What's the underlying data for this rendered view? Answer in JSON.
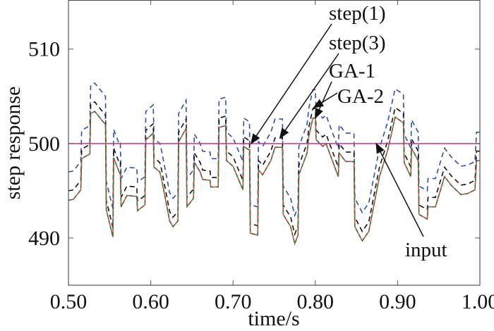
{
  "chart_data": {
    "type": "line",
    "title": "",
    "xlabel": "time/s",
    "ylabel": "step response",
    "xlim": [
      0.5,
      1.0
    ],
    "ylim": [
      485,
      515.2
    ],
    "xticks": [
      "0.50",
      "0.60",
      "0.70",
      "0.80",
      "0.90",
      "1.00"
    ],
    "xtick_values": [
      0.5,
      0.6,
      0.7,
      0.8,
      0.9,
      1.0
    ],
    "yticks": [
      "490",
      "500",
      "510"
    ],
    "ytick_values": [
      490,
      500,
      510
    ],
    "grid": false,
    "x": [
      0.5,
      0.506,
      0.515,
      0.516,
      0.526,
      0.527,
      0.532,
      0.545,
      0.546,
      0.554,
      0.555,
      0.562,
      0.563,
      0.564,
      0.571,
      0.583,
      0.584,
      0.593,
      0.594,
      0.603,
      0.604,
      0.611,
      0.613,
      0.623,
      0.627,
      0.633,
      0.634,
      0.643,
      0.644,
      0.652,
      0.653,
      0.66,
      0.663,
      0.672,
      0.673,
      0.682,
      0.683,
      0.691,
      0.692,
      0.7,
      0.712,
      0.713,
      0.72,
      0.721,
      0.73,
      0.731,
      0.736,
      0.746,
      0.751,
      0.76,
      0.761,
      0.77,
      0.775,
      0.779,
      0.78,
      0.79,
      0.792,
      0.797,
      0.8,
      0.801,
      0.809,
      0.813,
      0.828,
      0.829,
      0.837,
      0.847,
      0.848,
      0.857,
      0.865,
      0.878,
      0.888,
      0.897,
      0.907,
      0.908,
      0.916,
      0.917,
      0.925,
      0.926,
      0.936,
      0.937,
      0.946,
      0.957,
      0.966,
      0.977,
      0.985,
      0.994,
      0.996,
      1.0
    ],
    "series": [
      {
        "name": "step(1)",
        "color": "#2a4fb0",
        "style": "dashed",
        "values": [
          497.0,
          497.1,
          498.1,
          501.4,
          501.9,
          506.2,
          506.4,
          505.0,
          496.0,
          493.1,
          501.5,
          499.9,
          500.0,
          496.3,
          497.5,
          497.4,
          495.9,
          496.5,
          503.4,
          504.1,
          500.5,
          500.0,
          499.3,
          494.8,
          494.2,
          494.8,
          503.2,
          504.6,
          496.3,
          497.2,
          501.0,
          500.0,
          499.2,
          499.1,
          498.4,
          498.4,
          504.7,
          504.9,
          501.2,
          500.6,
          498.1,
          502.7,
          502.3,
          493.5,
          493.3,
          500.2,
          499.7,
          501.2,
          502.6,
          502.6,
          495.5,
          494.2,
          492.4,
          493.3,
          499.7,
          502.0,
          503.7,
          505.7,
          505.7,
          503.4,
          502.7,
          503.0,
          499.5,
          502.0,
          501.1,
          501.1,
          494.2,
          492.7,
          493.7,
          499.5,
          502.3,
          505.8,
          505.2,
          501.0,
          499.5,
          502.5,
          501.2,
          495.5,
          495.0,
          496.3,
          496.3,
          499.5,
          498.5,
          497.6,
          497.7,
          498.1,
          501.2,
          501.2
        ]
      },
      {
        "name": "step(3)",
        "color": "#111111",
        "style": "dashed",
        "values": [
          495.0,
          495.1,
          496.1,
          499.4,
          499.9,
          504.2,
          504.4,
          503.0,
          494.0,
          491.1,
          499.5,
          497.9,
          498.0,
          494.3,
          495.5,
          495.4,
          493.9,
          494.5,
          501.4,
          502.1,
          498.5,
          498.0,
          497.3,
          492.8,
          492.2,
          492.8,
          501.2,
          502.6,
          494.3,
          495.2,
          499.0,
          498.0,
          497.2,
          497.1,
          496.4,
          496.4,
          502.7,
          502.9,
          499.2,
          498.6,
          496.1,
          500.7,
          500.3,
          491.5,
          491.3,
          498.2,
          497.7,
          499.2,
          500.6,
          500.6,
          493.5,
          492.2,
          490.4,
          491.3,
          497.7,
          500.0,
          501.7,
          503.7,
          503.7,
          501.4,
          500.7,
          501.0,
          497.5,
          500.0,
          499.1,
          499.1,
          492.2,
          490.7,
          491.7,
          497.5,
          500.3,
          503.8,
          503.2,
          499.0,
          497.5,
          500.5,
          499.2,
          493.5,
          493.0,
          494.3,
          494.3,
          497.5,
          496.5,
          495.6,
          495.7,
          496.1,
          499.2,
          499.2
        ]
      },
      {
        "name": "GA-1",
        "color": "#e04848",
        "style": "solid",
        "values": [
          494.0,
          494.1,
          495.1,
          498.4,
          498.9,
          503.2,
          503.4,
          502.0,
          493.0,
          490.1,
          498.5,
          496.9,
          497.0,
          493.3,
          494.5,
          494.4,
          492.9,
          493.5,
          500.4,
          501.1,
          497.5,
          497.0,
          496.3,
          491.8,
          491.2,
          491.8,
          500.2,
          501.6,
          493.3,
          494.2,
          498.0,
          497.0,
          496.2,
          496.1,
          495.4,
          495.4,
          501.7,
          501.9,
          498.2,
          497.6,
          495.1,
          499.7,
          499.3,
          490.5,
          490.3,
          497.2,
          496.7,
          498.2,
          499.6,
          499.6,
          492.5,
          491.2,
          489.4,
          490.3,
          496.7,
          499.0,
          500.7,
          502.7,
          502.7,
          500.4,
          499.7,
          500.0,
          496.5,
          499.0,
          498.1,
          498.1,
          491.2,
          489.7,
          490.7,
          496.5,
          499.3,
          502.8,
          502.2,
          498.0,
          496.5,
          499.5,
          498.2,
          492.5,
          492.0,
          493.3,
          493.3,
          496.5,
          495.5,
          494.6,
          494.7,
          495.1,
          498.2,
          498.2
        ]
      },
      {
        "name": "GA-2",
        "color": "#2e7d32",
        "style": "dashed",
        "values": [
          494.0,
          494.1,
          495.1,
          498.4,
          498.9,
          503.2,
          503.4,
          502.0,
          493.0,
          490.1,
          498.5,
          496.9,
          497.0,
          493.3,
          494.5,
          494.4,
          492.9,
          493.5,
          500.4,
          501.1,
          497.5,
          497.0,
          496.3,
          491.8,
          491.2,
          491.8,
          500.2,
          501.6,
          493.3,
          494.2,
          498.0,
          497.0,
          496.2,
          496.1,
          495.4,
          495.4,
          501.7,
          501.9,
          498.2,
          497.6,
          495.1,
          499.7,
          499.3,
          490.5,
          490.3,
          497.2,
          496.7,
          498.2,
          499.6,
          499.6,
          492.5,
          491.2,
          489.4,
          490.3,
          496.7,
          499.0,
          500.7,
          502.7,
          502.7,
          500.4,
          499.7,
          500.0,
          496.5,
          499.0,
          498.1,
          498.1,
          491.2,
          489.7,
          490.7,
          496.5,
          499.3,
          502.8,
          502.2,
          498.0,
          496.5,
          499.5,
          498.2,
          492.5,
          492.0,
          493.3,
          493.3,
          496.5,
          495.5,
          494.6,
          494.7,
          495.1,
          498.2,
          498.2
        ]
      },
      {
        "name": "input",
        "color": "#d0308f",
        "style": "solid",
        "constant": 500
      }
    ],
    "annotations": [
      {
        "text": "step(1)",
        "points_to": [
          0.722,
          500.0
        ]
      },
      {
        "text": "step(3)",
        "points_to": [
          0.757,
          500.6
        ]
      },
      {
        "text": "GA-1",
        "points_to": [
          0.8,
          502.7
        ]
      },
      {
        "text": "GA-2",
        "points_to": [
          0.798,
          503.8
        ]
      },
      {
        "text": "input",
        "points_to": [
          0.874,
          500.0
        ]
      }
    ]
  }
}
